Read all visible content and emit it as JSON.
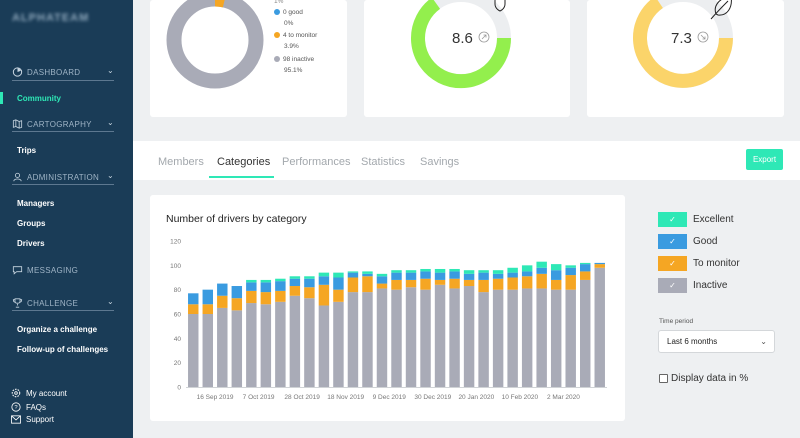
{
  "brand": "ALPHATEAM",
  "sidebar": {
    "sections": [
      {
        "label": "DASHBOARD",
        "icon": "dashboard-icon"
      },
      {
        "label": "CARTOGRAPHY",
        "icon": "map-icon"
      },
      {
        "label": "ADMINISTRATION",
        "icon": "user-icon"
      },
      {
        "label": "MESSAGING",
        "icon": "message-icon"
      },
      {
        "label": "CHALLENGE",
        "icon": "trophy-icon"
      }
    ],
    "items": {
      "community": "Community",
      "trips": "Trips",
      "managers": "Managers",
      "groups": "Groups",
      "drivers": "Drivers",
      "organize": "Organize a challenge",
      "followup": "Follow-up of challenges"
    },
    "footer": {
      "account": "My account",
      "faqs": "FAQs",
      "support": "Support"
    }
  },
  "donut": {
    "legend": [
      {
        "label": "1%",
        "pct": "",
        "color": "#2ee8b6"
      },
      {
        "label": "0 good",
        "pct": "0%",
        "color": "#3a9be0"
      },
      {
        "label": "4 to monitor",
        "pct": "3.9%",
        "color": "#f5a623"
      },
      {
        "label": "98 inactive",
        "pct": "95.1%",
        "color": "#a9abb7"
      }
    ],
    "values": [
      1,
      0,
      3.9,
      95.1
    ]
  },
  "gauges": [
    {
      "value": "8.6",
      "fraction": 0.8,
      "color": "#93ef4d",
      "icon": "shield-icon",
      "trend_icon": "arrow-up-right-icon"
    },
    {
      "value": "7.3",
      "fraction": 0.72,
      "color": "#fbd46a",
      "icon": "leaf-icon",
      "trend_icon": "arrow-down-right-icon"
    }
  ],
  "tabs": [
    "Members",
    "Categories",
    "Performances",
    "Statistics",
    "Savings"
  ],
  "active_tab": "Categories",
  "export_label": "Export",
  "chart_data": {
    "type": "bar",
    "stacked": true,
    "title": "Number of drivers by category",
    "ylim": [
      0,
      120
    ],
    "yticks": [
      0,
      20,
      40,
      60,
      80,
      100,
      120
    ],
    "x_tick_labels": [
      "16 Sep 2019",
      "7 Oct 2019",
      "28 Oct 2019",
      "18 Nov 2019",
      "9 Dec 2019",
      "30 Dec 2019",
      "20 Jan 2020",
      "10 Feb 2020",
      "2 Mar 2020"
    ],
    "series": [
      {
        "name": "Inactive",
        "color": "#a9abb7",
        "values": [
          60,
          60,
          65,
          63,
          69,
          68,
          70,
          75,
          73,
          67,
          70,
          78,
          78,
          81,
          80,
          82,
          80,
          84,
          81,
          83,
          78,
          80,
          80,
          81,
          81,
          80,
          80,
          88,
          98
        ]
      },
      {
        "name": "To monitor",
        "color": "#f5a623",
        "values": [
          8,
          8,
          10,
          10,
          10,
          10,
          9,
          8,
          9,
          17,
          10,
          12,
          13,
          4,
          8,
          6,
          9,
          4,
          8,
          5,
          10,
          9,
          10,
          10,
          12,
          8,
          12,
          7,
          3
        ]
      },
      {
        "name": "Good",
        "color": "#3a9be0",
        "values": [
          9,
          12,
          10,
          10,
          7,
          8,
          8,
          6,
          7,
          7,
          10,
          4,
          2,
          6,
          6,
          6,
          6,
          6,
          6,
          5,
          6,
          4,
          4,
          4,
          5,
          8,
          6,
          6,
          1
        ]
      },
      {
        "name": "Excellent",
        "color": "#2ee8b6",
        "values": [
          0,
          0,
          0,
          0,
          2,
          2,
          2,
          2,
          2,
          3,
          4,
          1,
          2,
          2,
          2,
          2,
          2,
          3,
          2,
          3,
          2,
          3,
          4,
          5,
          5,
          5,
          2,
          1,
          0
        ]
      }
    ]
  },
  "legend": [
    {
      "label": "Excellent",
      "color": "#2ee8b6"
    },
    {
      "label": "Good",
      "color": "#3a9be0"
    },
    {
      "label": "To monitor",
      "color": "#f5a623"
    },
    {
      "label": "Inactive",
      "color": "#a9abb7"
    }
  ],
  "check_mark": "✓",
  "time_period": {
    "label": "Time period",
    "value": "Last 6 months"
  },
  "display_pct_label": "Display data in %"
}
